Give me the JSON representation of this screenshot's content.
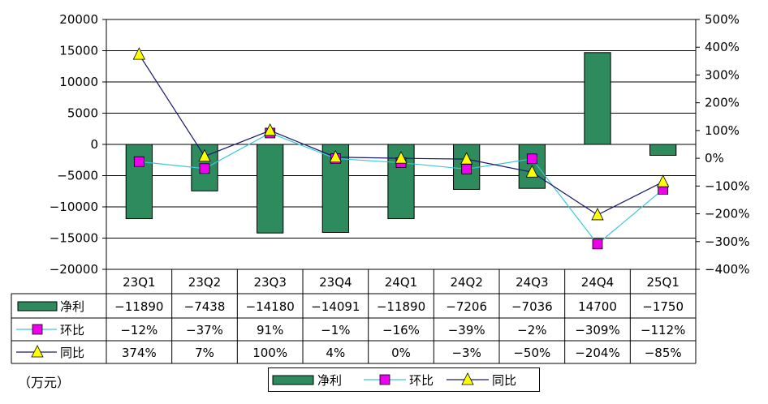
{
  "chart_data": {
    "type": "bar",
    "categories": [
      "23Q1",
      "23Q2",
      "23Q3",
      "23Q4",
      "24Q1",
      "24Q2",
      "24Q3",
      "24Q4",
      "25Q1"
    ],
    "series": [
      {
        "name": "净利",
        "type": "bar",
        "axis": "left",
        "color": "#2e8b5e",
        "values": [
          -11890,
          -7438,
          -14180,
          -14091,
          -11890,
          -7206,
          -7036,
          14700,
          -1750
        ],
        "labels": [
          "-11890",
          "-7438",
          "-14180",
          "-14091",
          "-11890",
          "-7206",
          "-7036",
          "14700",
          "-1750"
        ]
      },
      {
        "name": "环比",
        "type": "line",
        "axis": "right",
        "color": "#3cc8d8",
        "marker_color": "#ee00ee",
        "values": [
          -12,
          -37,
          91,
          -1,
          -16,
          -39,
          -2,
          -309,
          -112
        ],
        "labels": [
          "-12%",
          "-37%",
          "91%",
          "-1%",
          "-16%",
          "-39%",
          "-2%",
          "-309%",
          "-112%"
        ]
      },
      {
        "name": "同比",
        "type": "line",
        "axis": "right",
        "color": "#1a1a6e",
        "marker_color": "#ffff00",
        "values": [
          374,
          7,
          100,
          4,
          0,
          -3,
          -50,
          -204,
          -85
        ],
        "labels": [
          "374%",
          "7%",
          "100%",
          "4%",
          "0%",
          "-3%",
          "-50%",
          "-204%",
          "-85%"
        ]
      }
    ],
    "yleft": {
      "ylim": [
        -20000,
        20000
      ],
      "ticks": [
        "20000",
        "15000",
        "10000",
        "5000",
        "0",
        "-5000",
        "-10000",
        "-15000",
        "-20000"
      ]
    },
    "yright": {
      "ylim": [
        -400,
        500
      ],
      "ticks": [
        "500%",
        "400%",
        "300%",
        "200%",
        "100%",
        "0%",
        "-100%",
        "-200%",
        "-300%",
        "-400%"
      ]
    },
    "unit_label": "（万元）",
    "legend": [
      "净利",
      "环比",
      "同比"
    ],
    "grid": true
  }
}
